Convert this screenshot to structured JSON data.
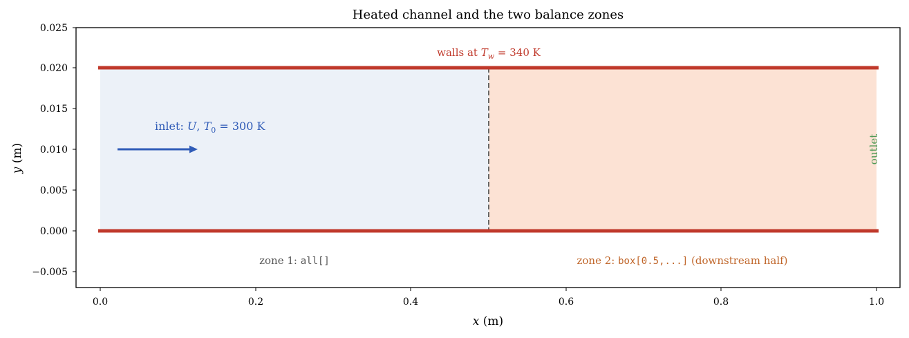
{
  "title": "Heated channel and the two balance zones",
  "xlabel_var": "x",
  "xlabel_unit": " (m)",
  "ylabel_var": "y",
  "ylabel_unit": " (m)",
  "x_ticks": [
    "0.0",
    "0.2",
    "0.4",
    "0.6",
    "0.8",
    "1.0"
  ],
  "y_ticks": [
    "0.025",
    "0.020",
    "0.015",
    "0.010",
    "0.005",
    "0.000",
    "−0.005"
  ],
  "walls_label": {
    "prefix": "walls at ",
    "var": "T",
    "sub": "w",
    "suffix": " = 340 K"
  },
  "inlet_label": {
    "prefix": "inlet: ",
    "var1": "U",
    "sep": ", ",
    "var2": "T",
    "sub": "0",
    "suffix": " = 300 K"
  },
  "outlet_label": "outlet",
  "zone1_label": {
    "prefix": "zone 1: ",
    "code": "all[]"
  },
  "zone2_label": {
    "prefix": "zone 2: ",
    "code": "box[0.5,...]",
    "suffix": " (downstream half)"
  },
  "colors": {
    "wall": "#c0392b",
    "zone1_fill": "#ecf1f8",
    "zone2_fill": "#fce2d4",
    "inlet": "#2f5bb7",
    "outlet": "#4f9a57",
    "zone1_text": "#555555",
    "zone2_text": "#c0662a",
    "divider": "#666666"
  }
}
